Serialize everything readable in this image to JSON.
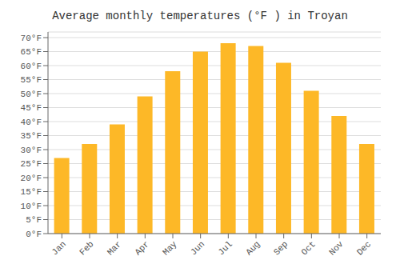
{
  "chart_data": {
    "type": "bar",
    "title": "Average monthly temperatures (°F ) in Troyan",
    "categories": [
      "Jan",
      "Feb",
      "Mar",
      "Apr",
      "May",
      "Jun",
      "Jul",
      "Aug",
      "Sep",
      "Oct",
      "Nov",
      "Dec"
    ],
    "values": [
      27,
      32,
      39,
      49,
      58,
      65,
      68,
      67,
      61,
      51,
      42,
      32
    ],
    "color": "#FDB827",
    "ylim": [
      0,
      72
    ],
    "yticks": [
      {
        "value": 0,
        "label": "0°F"
      },
      {
        "value": 5,
        "label": "5°F"
      },
      {
        "value": 10,
        "label": "10°F"
      },
      {
        "value": 15,
        "label": "15°F"
      },
      {
        "value": 20,
        "label": "20°F"
      },
      {
        "value": 25,
        "label": "25°F"
      },
      {
        "value": 30,
        "label": "30°F"
      },
      {
        "value": 35,
        "label": "35°F"
      },
      {
        "value": 40,
        "label": "40°F"
      },
      {
        "value": 45,
        "label": "45°F"
      },
      {
        "value": 50,
        "label": "50°F"
      },
      {
        "value": 55,
        "label": "55°F"
      },
      {
        "value": 60,
        "label": "60°F"
      },
      {
        "value": 65,
        "label": "65°F"
      },
      {
        "value": 70,
        "label": "70°F"
      }
    ],
    "grid": true
  }
}
